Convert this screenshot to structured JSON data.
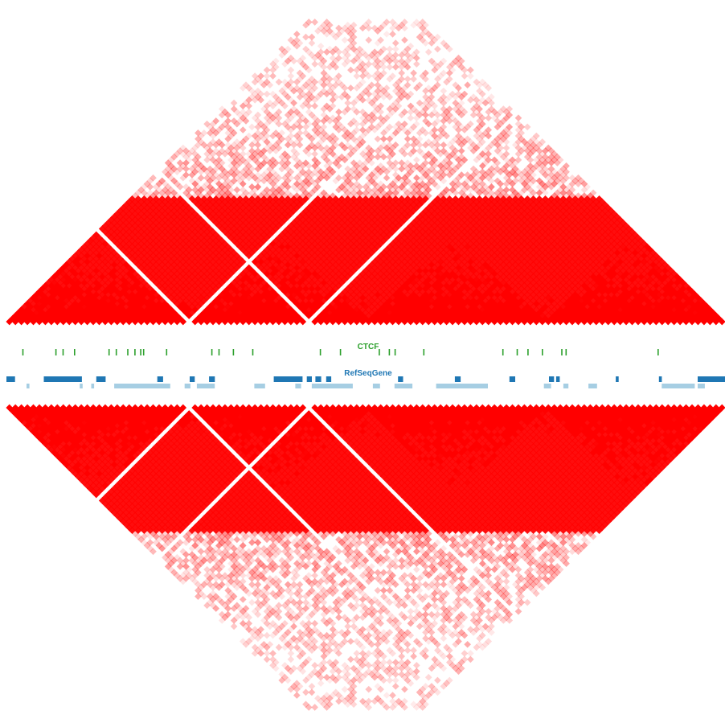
{
  "tracks": {
    "ctcf": {
      "label": "CTCF",
      "color": "#2ca02c",
      "marks": [
        0.022,
        0.068,
        0.078,
        0.094,
        0.142,
        0.152,
        0.168,
        0.178,
        0.186,
        0.19,
        0.222,
        0.285,
        0.295,
        0.315,
        0.342,
        0.436,
        0.464,
        0.518,
        0.532,
        0.54,
        0.58,
        0.69,
        0.71,
        0.725,
        0.745,
        0.772,
        0.778,
        0.906
      ]
    },
    "refseq": {
      "label": "RefSeqGene",
      "color_forward": "#1f77b4",
      "color_reverse": "#a6cee3",
      "forward": [
        [
          0.0,
          0.012
        ],
        [
          0.052,
          0.105
        ],
        [
          0.125,
          0.138
        ],
        [
          0.21,
          0.218
        ],
        [
          0.255,
          0.262
        ],
        [
          0.282,
          0.29
        ],
        [
          0.372,
          0.412
        ],
        [
          0.418,
          0.425
        ],
        [
          0.43,
          0.438
        ],
        [
          0.445,
          0.452
        ],
        [
          0.545,
          0.552
        ],
        [
          0.624,
          0.632
        ],
        [
          0.7,
          0.708
        ],
        [
          0.755,
          0.762
        ],
        [
          0.765,
          0.77
        ],
        [
          0.848,
          0.852
        ],
        [
          0.908,
          0.912
        ],
        [
          0.962,
          1.0
        ]
      ],
      "reverse": [
        [
          0.028,
          0.032
        ],
        [
          0.102,
          0.106
        ],
        [
          0.118,
          0.122
        ],
        [
          0.15,
          0.228
        ],
        [
          0.248,
          0.256
        ],
        [
          0.265,
          0.29
        ],
        [
          0.345,
          0.36
        ],
        [
          0.402,
          0.41
        ],
        [
          0.425,
          0.482
        ],
        [
          0.51,
          0.52
        ],
        [
          0.54,
          0.565
        ],
        [
          0.598,
          0.67
        ],
        [
          0.748,
          0.758
        ],
        [
          0.775,
          0.782
        ],
        [
          0.81,
          0.822
        ],
        [
          0.912,
          0.958
        ],
        [
          0.962,
          0.972
        ]
      ]
    }
  },
  "heatmap": {
    "color": "#ff0000",
    "bins": 120,
    "gap_bins": [
      30,
      50
    ]
  }
}
